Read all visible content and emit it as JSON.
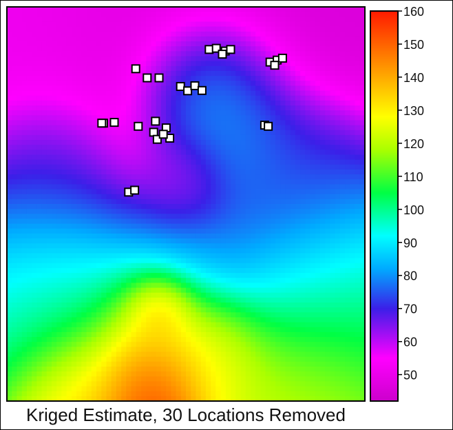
{
  "chart_data": {
    "type": "heatmap",
    "title": "Kriged Estimate, 30 Locations Removed",
    "colorbar": {
      "range": [
        42,
        160
      ],
      "tick_labels": [
        "160",
        "150",
        "140",
        "130",
        "120",
        "110",
        "100",
        "90",
        "80",
        "70",
        "60",
        "50"
      ],
      "tick_values": [
        160,
        150,
        140,
        130,
        120,
        110,
        100,
        90,
        80,
        70,
        60,
        50
      ],
      "color_stops": [
        {
          "value": 42,
          "color": "#cc00cc"
        },
        {
          "value": 55,
          "color": "#ff00ff"
        },
        {
          "value": 70,
          "color": "#3b1fe8"
        },
        {
          "value": 82,
          "color": "#00aaff"
        },
        {
          "value": 92,
          "color": "#00ffff"
        },
        {
          "value": 105,
          "color": "#00ff44"
        },
        {
          "value": 118,
          "color": "#aaff00"
        },
        {
          "value": 128,
          "color": "#ffff00"
        },
        {
          "value": 140,
          "color": "#ffaa00"
        },
        {
          "value": 160,
          "color": "#ff1a00"
        }
      ]
    },
    "field_features": [
      {
        "x": 0.53,
        "y": 0.02,
        "value": 46,
        "spread": 0.3
      },
      {
        "x": 0.05,
        "y": 0.04,
        "value": 52,
        "spread": 0.25
      },
      {
        "x": 0.56,
        "y": 0.22,
        "value": 98,
        "spread": 0.11
      },
      {
        "x": 0.66,
        "y": 0.36,
        "value": 86,
        "spread": 0.1
      },
      {
        "x": 0.5,
        "y": 0.45,
        "value": 60,
        "spread": 0.07
      },
      {
        "x": 0.8,
        "y": 0.44,
        "value": 74,
        "spread": 0.12
      },
      {
        "x": 0.12,
        "y": 0.42,
        "value": 72,
        "spread": 0.12
      },
      {
        "x": 0.1,
        "y": 0.63,
        "value": 88,
        "spread": 0.14
      },
      {
        "x": 0.85,
        "y": 0.63,
        "value": 86,
        "spread": 0.14
      },
      {
        "x": 0.5,
        "y": 0.62,
        "value": 84,
        "spread": 0.12
      },
      {
        "x": 0.15,
        "y": 0.78,
        "value": 104,
        "spread": 0.13
      },
      {
        "x": 0.9,
        "y": 0.8,
        "value": 106,
        "spread": 0.14
      },
      {
        "x": 0.82,
        "y": 0.98,
        "value": 122,
        "spread": 0.12
      },
      {
        "x": 0.42,
        "y": 0.82,
        "value": 138,
        "spread": 0.1
      },
      {
        "x": 0.43,
        "y": 0.77,
        "value": 144,
        "spread": 0.05
      },
      {
        "x": 0.4,
        "y": 0.98,
        "value": 158,
        "spread": 0.09
      },
      {
        "x": 0.22,
        "y": 0.96,
        "value": 136,
        "spread": 0.1
      },
      {
        "x": 0.58,
        "y": 0.9,
        "value": 128,
        "spread": 0.1
      }
    ],
    "removed_locations": [
      {
        "x": 0.565,
        "y": 0.108
      },
      {
        "x": 0.585,
        "y": 0.105
      },
      {
        "x": 0.61,
        "y": 0.112
      },
      {
        "x": 0.625,
        "y": 0.108
      },
      {
        "x": 0.735,
        "y": 0.14
      },
      {
        "x": 0.755,
        "y": 0.135
      },
      {
        "x": 0.77,
        "y": 0.13
      },
      {
        "x": 0.36,
        "y": 0.157
      },
      {
        "x": 0.425,
        "y": 0.18
      },
      {
        "x": 0.485,
        "y": 0.202
      },
      {
        "x": 0.505,
        "y": 0.213
      },
      {
        "x": 0.525,
        "y": 0.2
      },
      {
        "x": 0.545,
        "y": 0.212
      },
      {
        "x": 0.27,
        "y": 0.295
      },
      {
        "x": 0.3,
        "y": 0.293
      },
      {
        "x": 0.367,
        "y": 0.303
      },
      {
        "x": 0.415,
        "y": 0.29
      },
      {
        "x": 0.445,
        "y": 0.307
      },
      {
        "x": 0.41,
        "y": 0.318
      },
      {
        "x": 0.42,
        "y": 0.336
      },
      {
        "x": 0.455,
        "y": 0.333
      },
      {
        "x": 0.72,
        "y": 0.3
      },
      {
        "x": 0.73,
        "y": 0.303
      },
      {
        "x": 0.34,
        "y": 0.47
      },
      {
        "x": 0.357,
        "y": 0.465
      },
      {
        "x": 0.437,
        "y": 0.323
      },
      {
        "x": 0.265,
        "y": 0.295
      },
      {
        "x": 0.392,
        "y": 0.18
      },
      {
        "x": 0.602,
        "y": 0.12
      },
      {
        "x": 0.748,
        "y": 0.148
      }
    ]
  }
}
